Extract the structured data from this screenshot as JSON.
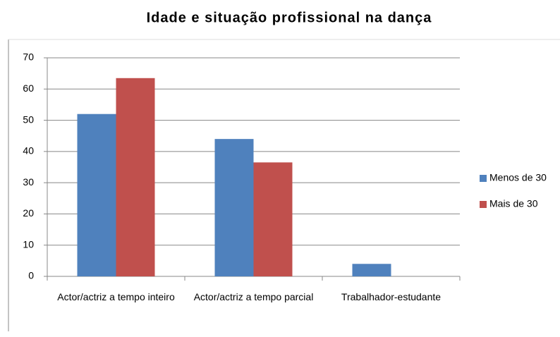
{
  "chart_data": {
    "type": "bar",
    "title": "Idade e situação profissional na dança",
    "categories": [
      "Actor/actriz a tempo inteiro",
      "Actor/actriz a tempo parcial",
      "Trabalhador-estudante"
    ],
    "series": [
      {
        "name": "Menos de 30",
        "color": "#4f81bd",
        "values": [
          52,
          44,
          4
        ]
      },
      {
        "name": "Mais de 30",
        "color": "#c0504d",
        "values": [
          63.5,
          36.5,
          0
        ]
      }
    ],
    "ylim": [
      0,
      70
    ],
    "yticks": [
      0,
      10,
      20,
      30,
      40,
      50,
      60,
      70
    ],
    "grid": true,
    "legend": "right"
  }
}
